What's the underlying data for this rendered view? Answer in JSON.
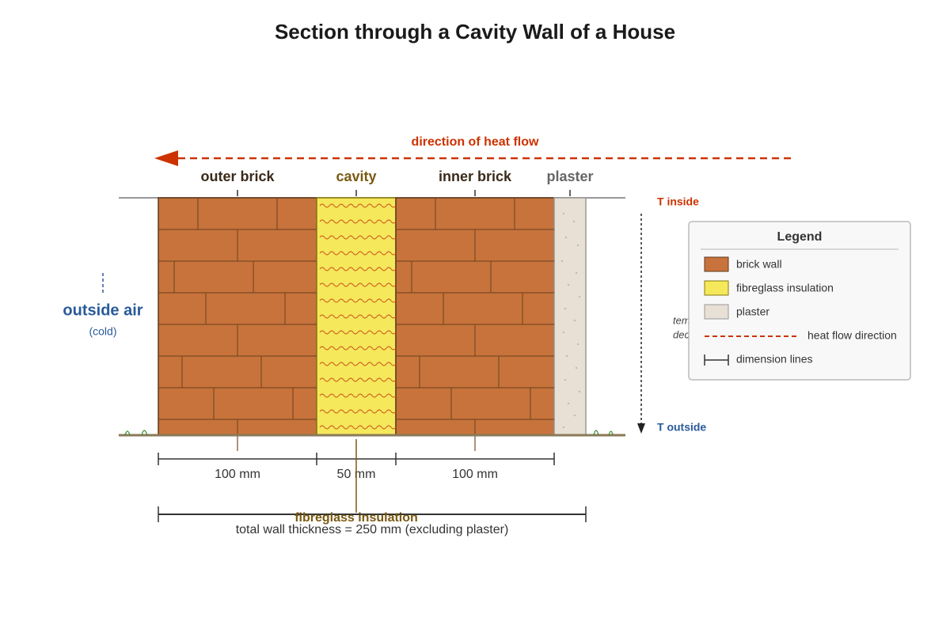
{
  "title": "Section through a Cavity Wall of a House",
  "heat_flow_label": "direction of heat flow",
  "layers": [
    "outer brick",
    "cavity",
    "inner brick",
    "plaster"
  ],
  "temperature": {
    "inside": "T inside",
    "outside": "T outside",
    "note": [
      "temperature",
      "decreases"
    ]
  },
  "outside_air": {
    "label": "outside air",
    "sublabel": "(cold)"
  },
  "dimensions": [
    "100 mm",
    "50 mm",
    "100 mm"
  ],
  "callout": "fibreglass insulation",
  "total": "total wall thickness = 250 mm (excluding plaster)",
  "legend": {
    "title": "Legend",
    "items": [
      "brick wall",
      "fibreglass insulation",
      "plaster",
      "heat flow direction",
      "dimension lines"
    ]
  }
}
